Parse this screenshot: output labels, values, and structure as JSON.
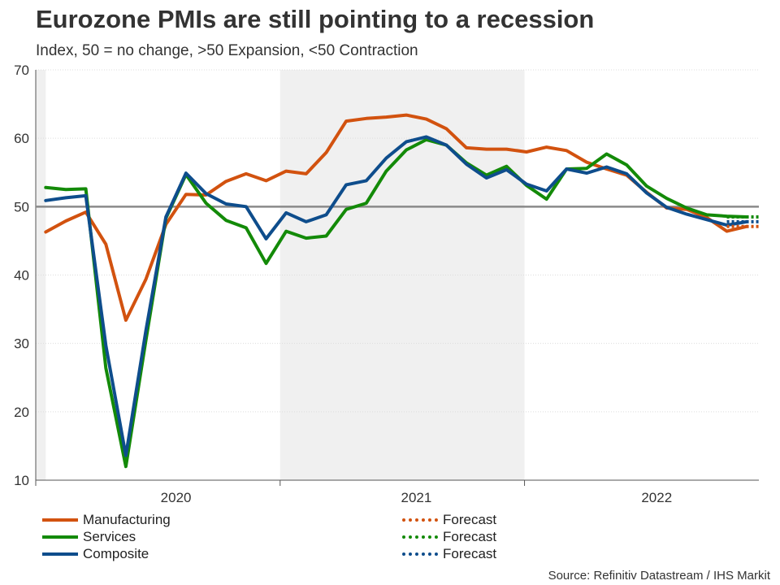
{
  "header": {
    "title": "Eurozone PMIs are still pointing to a recession",
    "subtitle": "Index, 50 = no change, >50 Expansion, <50 Contraction"
  },
  "source": "Source: Refinitiv Datastream / IHS Markit",
  "colors": {
    "manufacturing": "#d2520f",
    "services": "#138a08",
    "composite": "#0e4d8c",
    "shade": "#f0f0f0",
    "baseline": "#8a8a8a",
    "grid": "#dcdcdc"
  },
  "legend": [
    {
      "label": "Manufacturing",
      "series": "manufacturing",
      "style": "solid"
    },
    {
      "label": "Services",
      "series": "services",
      "style": "solid"
    },
    {
      "label": "Composite",
      "series": "composite",
      "style": "solid"
    },
    {
      "label": "Forecast",
      "series": "manufacturing",
      "style": "dotted"
    },
    {
      "label": "Forecast",
      "series": "services",
      "style": "dotted"
    },
    {
      "label": "Forecast",
      "series": "composite",
      "style": "dotted"
    }
  ],
  "chart_data": {
    "type": "line",
    "title": "Eurozone PMIs are still pointing to a recession",
    "subtitle": "Index, 50 = no change, >50 Expansion, <50 Contraction",
    "ylabel": "",
    "xlabel": "",
    "ylim": [
      10,
      70
    ],
    "y_ticks": [
      10,
      20,
      30,
      40,
      50,
      60,
      70
    ],
    "x_range": [
      -0.5,
      35.6
    ],
    "reference_line": 50,
    "year_labels": [
      {
        "label": "2020",
        "center": 6.5
      },
      {
        "label": "2021",
        "center": 18.5
      },
      {
        "label": "2022",
        "center": 30.5
      }
    ],
    "year_boundaries": [
      -0.5,
      11.7,
      23.9
    ],
    "shaded_spans": [
      [
        -0.5,
        0.0
      ],
      [
        11.7,
        23.9
      ]
    ],
    "x": [
      0,
      1,
      2,
      3,
      4,
      5,
      6,
      7,
      8,
      9,
      10,
      11,
      12,
      13,
      14,
      15,
      16,
      17,
      18,
      19,
      20,
      21,
      22,
      23,
      24,
      25,
      26,
      27,
      28,
      29,
      30,
      31,
      32,
      33,
      34,
      35
    ],
    "series": [
      {
        "name": "Manufacturing",
        "key": "manufacturing",
        "values": [
          46.3,
          47.9,
          49.2,
          44.5,
          33.4,
          39.4,
          47.4,
          51.8,
          51.7,
          53.7,
          54.8,
          53.8,
          55.2,
          54.8,
          57.9,
          62.5,
          62.9,
          63.1,
          63.4,
          62.8,
          61.4,
          58.6,
          58.4,
          58.4,
          58.0,
          58.7,
          58.2,
          56.5,
          55.5,
          54.6,
          52.1,
          49.8,
          49.6,
          48.4,
          46.4,
          47.1
        ],
        "forecast": {
          "from": 34,
          "to": 35.6,
          "value": 47.1
        }
      },
      {
        "name": "Services",
        "key": "services",
        "values": [
          52.8,
          52.5,
          52.6,
          26.4,
          12.0,
          30.5,
          48.3,
          54.7,
          50.5,
          48.0,
          46.9,
          41.7,
          46.4,
          45.4,
          45.7,
          49.6,
          50.5,
          55.2,
          58.3,
          59.8,
          59.0,
          56.4,
          54.6,
          55.9,
          53.1,
          51.1,
          55.5,
          55.6,
          57.7,
          56.1,
          53.0,
          51.2,
          49.8,
          48.8,
          48.6,
          48.5
        ],
        "forecast": {
          "from": 34,
          "to": 35.6,
          "value": 48.5
        }
      },
      {
        "name": "Composite",
        "key": "composite",
        "values": [
          50.9,
          51.3,
          51.6,
          29.7,
          13.6,
          31.9,
          48.5,
          54.9,
          51.9,
          50.4,
          50.0,
          45.3,
          49.1,
          47.8,
          48.8,
          53.2,
          53.8,
          57.1,
          59.5,
          60.2,
          59.0,
          56.2,
          54.2,
          55.4,
          53.3,
          52.3,
          55.5,
          54.9,
          55.8,
          54.8,
          52.0,
          49.9,
          48.9,
          48.1,
          47.3,
          47.8
        ],
        "forecast": {
          "from": 34,
          "to": 35.6,
          "value": 47.8
        }
      }
    ]
  }
}
